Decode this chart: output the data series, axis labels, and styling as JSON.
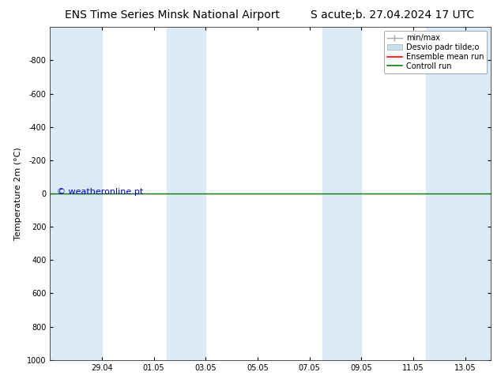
{
  "title_left": "ENS Time Series Minsk National Airport",
  "title_right": "S acute;b. 27.04.2024 17 UTC",
  "ylabel": "Temperature 2m (°C)",
  "ylim_top": -1000,
  "ylim_bottom": 1000,
  "yticks": [
    -800,
    -600,
    -400,
    -200,
    0,
    200,
    400,
    600,
    800,
    1000
  ],
  "xtick_labels": [
    "29.04",
    "01.05",
    "03.05",
    "05.05",
    "07.05",
    "09.05",
    "11.05",
    "13.05"
  ],
  "xtick_positions": [
    2,
    4,
    6,
    8,
    10,
    12,
    14,
    16
  ],
  "xlim": [
    0,
    17
  ],
  "background_color": "#ffffff",
  "band_color": "#daeaf7",
  "band_positions": [
    [
      0,
      2
    ],
    [
      4.5,
      6
    ],
    [
      10.5,
      12
    ],
    [
      14.5,
      17
    ]
  ],
  "watermark": "© weatheronline.pt",
  "watermark_color": "#0000bb",
  "watermark_fontsize": 8,
  "control_run_y": 0,
  "control_run_color": "#008800",
  "ensemble_mean_color": "#ff0000",
  "legend_label_minmax": "min/max",
  "legend_label_desvio": "Desvio padr tilde;o",
  "legend_label_ensemble": "Ensemble mean run",
  "legend_label_control": "Controll run",
  "title_fontsize": 10,
  "axis_label_fontsize": 8,
  "tick_fontsize": 7,
  "legend_fontsize": 7
}
